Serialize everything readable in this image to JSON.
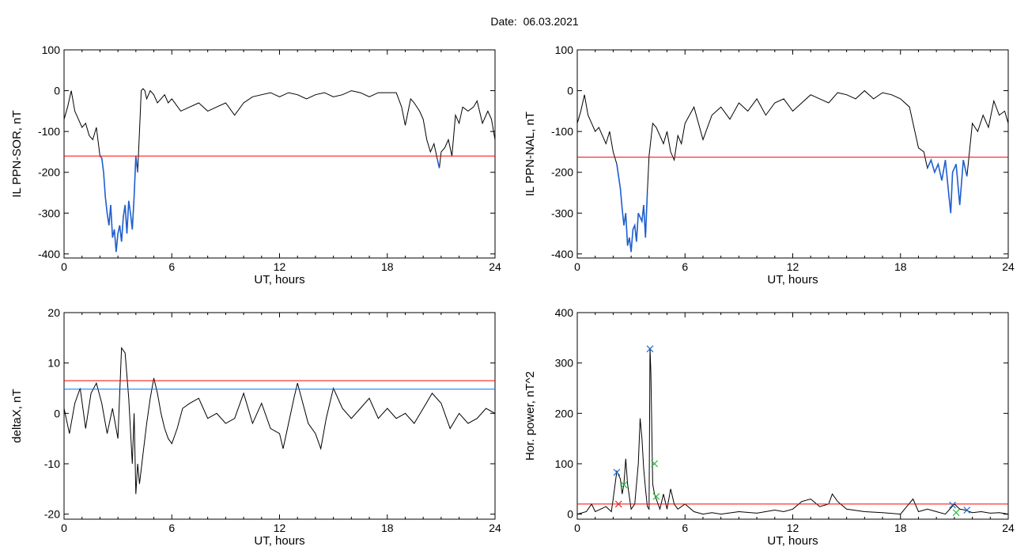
{
  "header": {
    "date_label": "Date:",
    "date_value": "06.03.2021"
  },
  "colors": {
    "curve": "#000000",
    "threshold_red": "#ff0000",
    "threshold_blue": "#0070ff",
    "highlight_blue": "#1f5fd0",
    "marker_blue": "#1f6fd0",
    "marker_red": "#e03030",
    "marker_green": "#20c040"
  },
  "chart_data": [
    {
      "id": "ppn-sor",
      "type": "line",
      "xlabel": "UT, hours",
      "ylabel": "IL PPN-SOR, nT",
      "xlim": [
        0,
        24
      ],
      "ylim": [
        -410,
        100
      ],
      "xticks": [
        0,
        6,
        12,
        18,
        24
      ],
      "yticks": [
        100,
        0,
        -100,
        -200,
        -300,
        -400
      ],
      "grid": false,
      "x": [
        0,
        0.2,
        0.4,
        0.6,
        0.8,
        1,
        1.2,
        1.4,
        1.6,
        1.8,
        2,
        2.1,
        2.2,
        2.3,
        2.4,
        2.5,
        2.6,
        2.7,
        2.8,
        2.9,
        3,
        3.1,
        3.2,
        3.3,
        3.4,
        3.5,
        3.6,
        3.7,
        3.8,
        3.9,
        4,
        4.1,
        4.2,
        4.3,
        4.4,
        4.5,
        4.6,
        4.8,
        5,
        5.2,
        5.4,
        5.6,
        5.8,
        6,
        6.5,
        7,
        7.5,
        8,
        8.5,
        9,
        9.5,
        10,
        10.5,
        11,
        11.5,
        12,
        12.5,
        13,
        13.5,
        14,
        14.5,
        15,
        15.5,
        16,
        16.5,
        17,
        17.5,
        18,
        18.5,
        18.8,
        19,
        19.3,
        19.5,
        19.8,
        20,
        20.2,
        20.4,
        20.6,
        20.8,
        20.9,
        21,
        21.2,
        21.4,
        21.6,
        21.8,
        22,
        22.2,
        22.5,
        22.8,
        23,
        23.3,
        23.6,
        23.8,
        24
      ],
      "values": [
        -70,
        -40,
        0,
        -50,
        -70,
        -90,
        -80,
        -110,
        -120,
        -90,
        -160,
        -165,
        -200,
        -260,
        -300,
        -330,
        -280,
        -360,
        -340,
        -395,
        -350,
        -330,
        -370,
        -310,
        -280,
        -350,
        -270,
        -300,
        -340,
        -260,
        -160,
        -200,
        -100,
        0,
        5,
        0,
        -20,
        0,
        -10,
        -30,
        -20,
        -10,
        -30,
        -20,
        -50,
        -40,
        -30,
        -50,
        -40,
        -30,
        -60,
        -30,
        -15,
        -10,
        -5,
        -15,
        -5,
        -10,
        -20,
        -10,
        -5,
        -15,
        -10,
        0,
        -5,
        -15,
        -5,
        -5,
        -5,
        -40,
        -85,
        -20,
        -30,
        -50,
        -70,
        -120,
        -150,
        -130,
        -170,
        -190,
        -150,
        -140,
        -120,
        -160,
        -60,
        -80,
        -40,
        -50,
        -40,
        -25,
        -80,
        -50,
        -70,
        -120
      ],
      "threshold_red": -160,
      "highlight_below": -160
    },
    {
      "id": "ppn-nal",
      "type": "line",
      "xlabel": "UT, hours",
      "ylabel": "IL PPN-NAL, nT",
      "xlim": [
        0,
        24
      ],
      "ylim": [
        -410,
        100
      ],
      "xticks": [
        0,
        6,
        12,
        18,
        24
      ],
      "yticks": [
        100,
        0,
        -100,
        -200,
        -300,
        -400
      ],
      "grid": false,
      "x": [
        0,
        0.2,
        0.4,
        0.6,
        0.8,
        1,
        1.2,
        1.4,
        1.6,
        1.8,
        2,
        2.2,
        2.4,
        2.5,
        2.6,
        2.7,
        2.8,
        2.9,
        3,
        3.1,
        3.2,
        3.3,
        3.4,
        3.6,
        3.7,
        3.8,
        3.9,
        4,
        4.1,
        4.2,
        4.4,
        4.6,
        4.8,
        5,
        5.2,
        5.4,
        5.6,
        5.8,
        6,
        6.5,
        7,
        7.5,
        8,
        8.5,
        9,
        9.5,
        10,
        10.5,
        11,
        11.5,
        12,
        12.5,
        13,
        13.5,
        14,
        14.5,
        15,
        15.5,
        16,
        16.5,
        17,
        17.5,
        18,
        18.5,
        19,
        19.3,
        19.5,
        19.7,
        19.9,
        20.1,
        20.3,
        20.5,
        20.7,
        20.8,
        20.9,
        21.1,
        21.3,
        21.5,
        21.7,
        22,
        22.3,
        22.6,
        22.9,
        23.2,
        23.5,
        23.8,
        24
      ],
      "values": [
        -80,
        -50,
        -10,
        -60,
        -80,
        -100,
        -90,
        -110,
        -130,
        -100,
        -150,
        -180,
        -240,
        -290,
        -330,
        -300,
        -380,
        -360,
        -395,
        -340,
        -330,
        -370,
        -300,
        -320,
        -280,
        -360,
        -250,
        -160,
        -120,
        -80,
        -90,
        -110,
        -130,
        -100,
        -150,
        -170,
        -110,
        -130,
        -80,
        -40,
        -120,
        -60,
        -40,
        -70,
        -30,
        -50,
        -20,
        -60,
        -30,
        -20,
        -50,
        -30,
        -10,
        -20,
        -30,
        -5,
        -10,
        -20,
        0,
        -20,
        -5,
        -10,
        -20,
        -40,
        -140,
        -150,
        -190,
        -170,
        -200,
        -180,
        -220,
        -170,
        -260,
        -300,
        -200,
        -180,
        -280,
        -170,
        -210,
        -80,
        -100,
        -60,
        -90,
        -25,
        -60,
        -50,
        -80
      ],
      "threshold_red": -163,
      "highlight_below": -163
    },
    {
      "id": "deltax",
      "type": "line",
      "xlabel": "UT, hours",
      "ylabel": "deltaX, nT",
      "xlim": [
        0,
        24
      ],
      "ylim": [
        -21,
        20
      ],
      "xticks": [
        0,
        6,
        12,
        18,
        24
      ],
      "yticks": [
        20,
        10,
        0,
        -10,
        -20
      ],
      "grid": false,
      "x": [
        0,
        0.3,
        0.6,
        0.9,
        1.2,
        1.5,
        1.8,
        2.1,
        2.4,
        2.7,
        3,
        3.2,
        3.4,
        3.6,
        3.8,
        3.9,
        4,
        4.1,
        4.2,
        4.4,
        4.6,
        4.8,
        5,
        5.2,
        5.4,
        5.6,
        5.8,
        6,
        6.3,
        6.6,
        7,
        7.5,
        8,
        8.5,
        9,
        9.5,
        10,
        10.5,
        11,
        11.5,
        12,
        12.2,
        12.5,
        12.8,
        13,
        13.3,
        13.6,
        14,
        14.3,
        14.6,
        15,
        15.5,
        16,
        16.5,
        17,
        17.5,
        18,
        18.5,
        19,
        19.5,
        20,
        20.5,
        21,
        21.5,
        22,
        22.5,
        23,
        23.5,
        24
      ],
      "values": [
        1,
        -4,
        2,
        5,
        -3,
        4,
        6,
        2,
        -4,
        1,
        -5,
        13,
        12,
        3,
        -10,
        0,
        -16,
        -10,
        -14,
        -8,
        -2,
        3,
        7,
        4,
        0,
        -3,
        -5,
        -6,
        -3,
        1,
        2,
        3,
        -1,
        0,
        -2,
        -1,
        4,
        -2,
        2,
        -3,
        -4,
        -7,
        -2,
        3,
        6,
        2,
        -2,
        -4,
        -7,
        -1,
        5,
        1,
        -1,
        1,
        3,
        -1,
        1,
        -1,
        0,
        -2,
        1,
        4,
        2,
        -3,
        0,
        -2,
        -1,
        1,
        0
      ],
      "threshold_red": 6.5,
      "threshold_blue": 4.8
    },
    {
      "id": "hor-power",
      "type": "line",
      "xlabel": "UT, hours",
      "ylabel": "Hor. power, nT^2",
      "xlim": [
        0,
        24
      ],
      "ylim": [
        -10,
        400
      ],
      "xticks": [
        0,
        6,
        12,
        18,
        24
      ],
      "yticks": [
        400,
        300,
        200,
        100,
        0
      ],
      "grid": false,
      "x": [
        0,
        0.5,
        0.8,
        1,
        1.3,
        1.6,
        1.9,
        2,
        2.2,
        2.4,
        2.5,
        2.6,
        2.7,
        2.8,
        3,
        3.2,
        3.4,
        3.5,
        3.6,
        3.7,
        3.8,
        3.9,
        4,
        4.05,
        4.1,
        4.2,
        4.3,
        4.4,
        4.6,
        4.8,
        5,
        5.2,
        5.4,
        5.6,
        6,
        6.5,
        7,
        7.5,
        8,
        9,
        10,
        11,
        11.5,
        12,
        12.5,
        13,
        13.5,
        14,
        14.2,
        14.5,
        15,
        16,
        17,
        18,
        18.7,
        19,
        19.5,
        20,
        20.5,
        21,
        21.3,
        21.6,
        22,
        22.5,
        23,
        23.5,
        24
      ],
      "values": [
        0,
        5,
        20,
        5,
        10,
        15,
        5,
        30,
        85,
        70,
        40,
        60,
        110,
        60,
        10,
        20,
        100,
        190,
        150,
        90,
        50,
        15,
        10,
        330,
        280,
        60,
        40,
        30,
        10,
        40,
        10,
        50,
        20,
        10,
        20,
        5,
        0,
        3,
        0,
        5,
        2,
        8,
        5,
        10,
        25,
        30,
        15,
        20,
        40,
        25,
        10,
        5,
        3,
        0,
        30,
        5,
        10,
        5,
        0,
        20,
        10,
        8,
        3,
        5,
        2,
        3,
        0
      ],
      "threshold_red": 20,
      "markers": [
        {
          "x": 2.2,
          "y": 83,
          "color": "blue"
        },
        {
          "x": 2.3,
          "y": 20,
          "color": "red"
        },
        {
          "x": 2.6,
          "y": 58,
          "color": "green"
        },
        {
          "x": 4.05,
          "y": 328,
          "color": "blue"
        },
        {
          "x": 4.3,
          "y": 100,
          "color": "green"
        },
        {
          "x": 4.4,
          "y": 35,
          "color": "green"
        },
        {
          "x": 20.9,
          "y": 18,
          "color": "blue"
        },
        {
          "x": 21.1,
          "y": 3,
          "color": "green"
        },
        {
          "x": 21.7,
          "y": 8,
          "color": "blue"
        }
      ]
    }
  ]
}
